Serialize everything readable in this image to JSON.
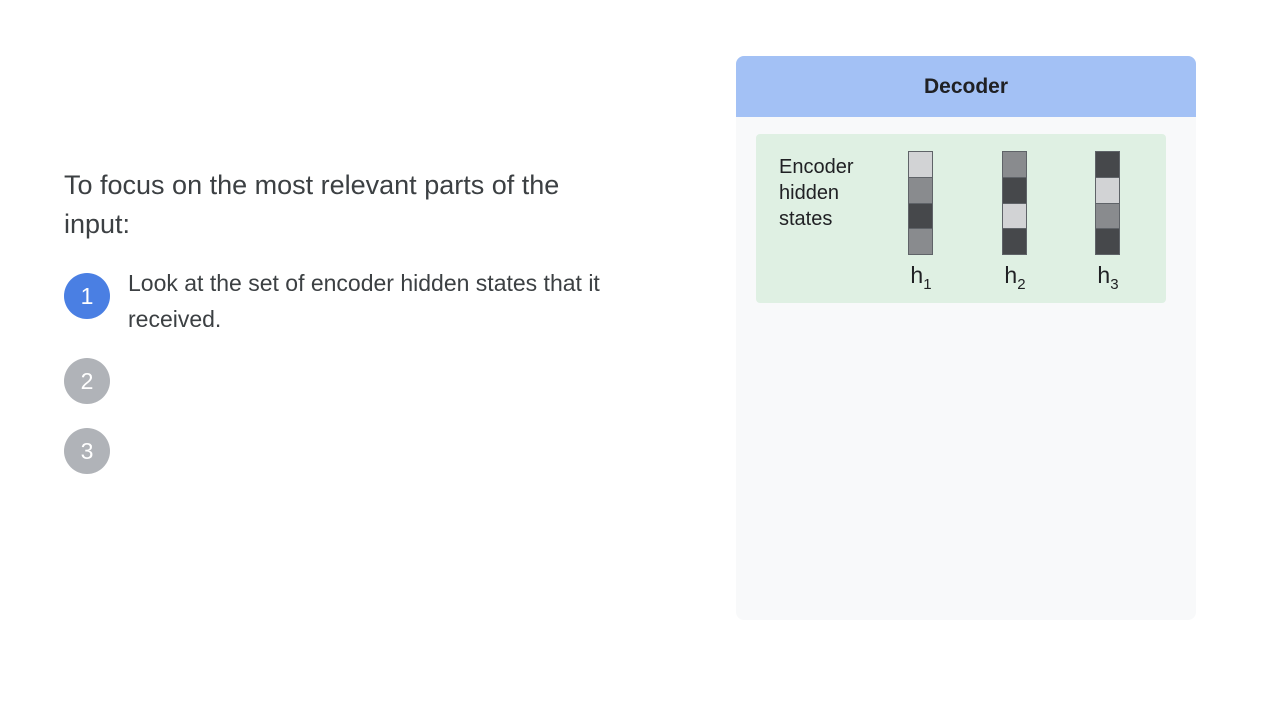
{
  "heading": "To focus on the most relevant parts of the input:",
  "steps": [
    {
      "number": "1",
      "text": "Look at the set of encoder hidden states that it received.",
      "state": "active"
    },
    {
      "number": "2",
      "text": "",
      "state": "inactive"
    },
    {
      "number": "3",
      "text": "",
      "state": "inactive"
    }
  ],
  "decoder": {
    "title": "Decoder",
    "encoder_label": "Encoder hidden states",
    "vectors": [
      {
        "label": "h",
        "subscript": "1",
        "cells": [
          "#d2d3d5",
          "#898b8e",
          "#46484b",
          "#898b8e"
        ]
      },
      {
        "label": "h",
        "subscript": "2",
        "cells": [
          "#898b8e",
          "#46484b",
          "#d2d3d5",
          "#46484b"
        ]
      },
      {
        "label": "h",
        "subscript": "3",
        "cells": [
          "#46484b",
          "#d2d3d5",
          "#898b8e",
          "#46484b"
        ]
      }
    ]
  },
  "colors": {
    "step_active": "#4a7fe3",
    "step_inactive": "#b0b3b8",
    "decoder_header": "#a3c1f5",
    "encoder_box": "#dff0e3",
    "panel_bg": "#f8f9fa"
  }
}
